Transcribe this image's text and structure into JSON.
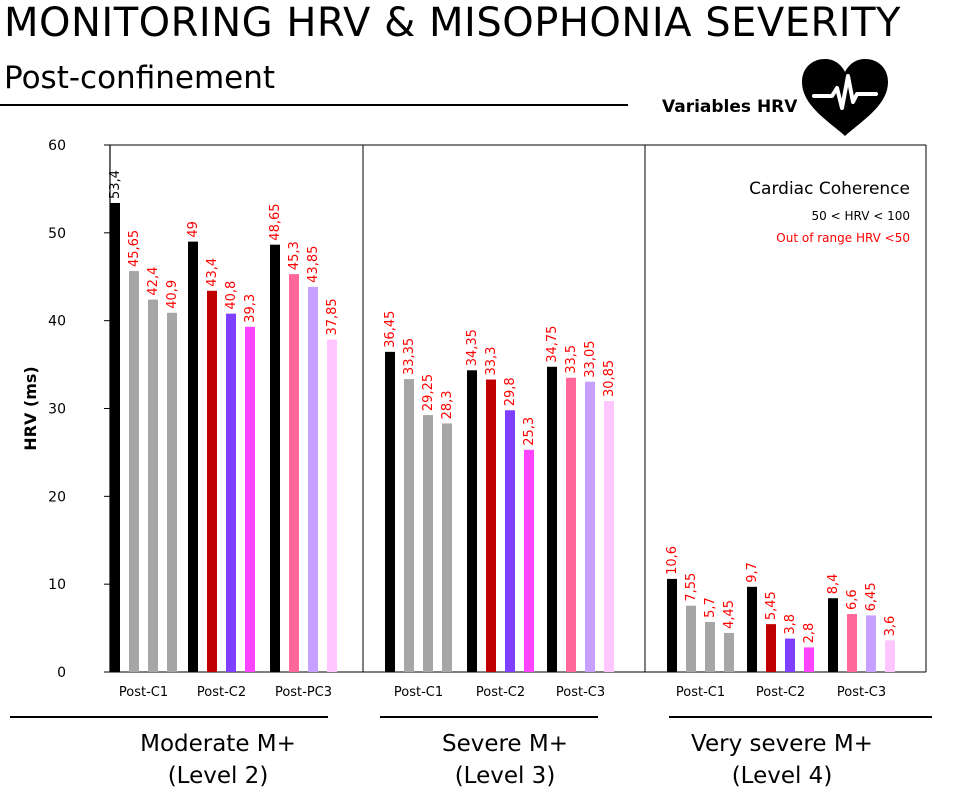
{
  "header": {
    "title": "MONITORING HRV & MISOPHONIA SEVERITY",
    "subtitle": "Post-confinement",
    "badge_label": "Variables HRV",
    "badge_icon": "heart-ecg-icon"
  },
  "colors": {
    "baseline": "#000000",
    "gray": "#a6a6a6",
    "red_bar": "#c00000",
    "purple": "#7f3fff",
    "magenta": "#ff44ff",
    "pink": "#ff6699",
    "lavender": "#c8a0ff",
    "light_pink": "#ffc6ff",
    "label_black": "#000000",
    "label_red": "#ff0000"
  },
  "chart_data": {
    "type": "bar",
    "ylabel": "HRV (ms)",
    "ylim": [
      0,
      60
    ],
    "yticks": [
      "0",
      "10",
      "20",
      "30",
      "40",
      "50",
      "60"
    ],
    "legend": {
      "title": "Cardiac Coherence",
      "in_range": "50 < HRV < 100",
      "out_range": "Out of range HRV <50"
    },
    "panels": [
      {
        "name": "Moderate M+",
        "level": "(Level 2)",
        "groups": [
          {
            "label": "Post-C1",
            "values": [
              53.4,
              45.65,
              42.4,
              40.9
            ],
            "value_labels": [
              "53,4",
              "45,65",
              "42,4",
              "40,9"
            ],
            "colors": [
              "baseline",
              "gray",
              "gray",
              "gray"
            ],
            "label_colors": [
              "label_black",
              "label_red",
              "label_red",
              "label_red"
            ]
          },
          {
            "label": "Post-C2",
            "values": [
              49,
              43.4,
              40.8,
              39.3
            ],
            "value_labels": [
              "49",
              "43,4",
              "40,8",
              "39,3"
            ],
            "colors": [
              "baseline",
              "red_bar",
              "purple",
              "magenta"
            ],
            "label_colors": [
              "label_red",
              "label_red",
              "label_red",
              "label_red"
            ]
          },
          {
            "label": "Post-PC3",
            "values": [
              48.65,
              45.3,
              43.85,
              37.85
            ],
            "value_labels": [
              "48,65",
              "45,3",
              "43,85",
              "37,85"
            ],
            "colors": [
              "baseline",
              "pink",
              "lavender",
              "light_pink"
            ],
            "label_colors": [
              "label_red",
              "label_red",
              "label_red",
              "label_red"
            ]
          }
        ]
      },
      {
        "name": "Severe M+",
        "level": "(Level 3)",
        "groups": [
          {
            "label": "Post-C1",
            "values": [
              36.45,
              33.35,
              29.25,
              28.3
            ],
            "value_labels": [
              "36,45",
              "33,35",
              "29,25",
              "28,3"
            ],
            "colors": [
              "baseline",
              "gray",
              "gray",
              "gray"
            ],
            "label_colors": [
              "label_red",
              "label_red",
              "label_red",
              "label_red"
            ]
          },
          {
            "label": "Post-C2",
            "values": [
              34.35,
              33.3,
              29.8,
              25.3
            ],
            "value_labels": [
              "34,35",
              "33,3",
              "29,8",
              "25,3"
            ],
            "colors": [
              "baseline",
              "red_bar",
              "purple",
              "magenta"
            ],
            "label_colors": [
              "label_red",
              "label_red",
              "label_red",
              "label_red"
            ]
          },
          {
            "label": "Post-C3",
            "values": [
              34.75,
              33.5,
              33.05,
              30.85
            ],
            "value_labels": [
              "34,75",
              "33,5",
              "33,05",
              "30,85"
            ],
            "colors": [
              "baseline",
              "pink",
              "lavender",
              "light_pink"
            ],
            "label_colors": [
              "label_red",
              "label_red",
              "label_red",
              "label_red"
            ]
          }
        ]
      },
      {
        "name": "Very severe M+",
        "level": "(Level 4)",
        "groups": [
          {
            "label": "Post-C1",
            "values": [
              10.6,
              7.55,
              5.7,
              4.45
            ],
            "value_labels": [
              "10,6",
              "7,55",
              "5,7",
              "4,45"
            ],
            "colors": [
              "baseline",
              "gray",
              "gray",
              "gray"
            ],
            "label_colors": [
              "label_red",
              "label_red",
              "label_red",
              "label_red"
            ]
          },
          {
            "label": "Post-C2",
            "values": [
              9.7,
              5.45,
              3.8,
              2.8
            ],
            "value_labels": [
              "9,7",
              "5,45",
              "3,8",
              "2,8"
            ],
            "colors": [
              "baseline",
              "red_bar",
              "purple",
              "magenta"
            ],
            "label_colors": [
              "label_red",
              "label_red",
              "label_red",
              "label_red"
            ]
          },
          {
            "label": "Post-C3",
            "values": [
              8.4,
              6.6,
              6.45,
              3.6
            ],
            "value_labels": [
              "8,4",
              "6,6",
              "6,45",
              "3,6"
            ],
            "colors": [
              "baseline",
              "pink",
              "lavender",
              "light_pink"
            ],
            "label_colors": [
              "label_red",
              "label_red",
              "label_red",
              "label_red"
            ]
          }
        ]
      }
    ]
  }
}
